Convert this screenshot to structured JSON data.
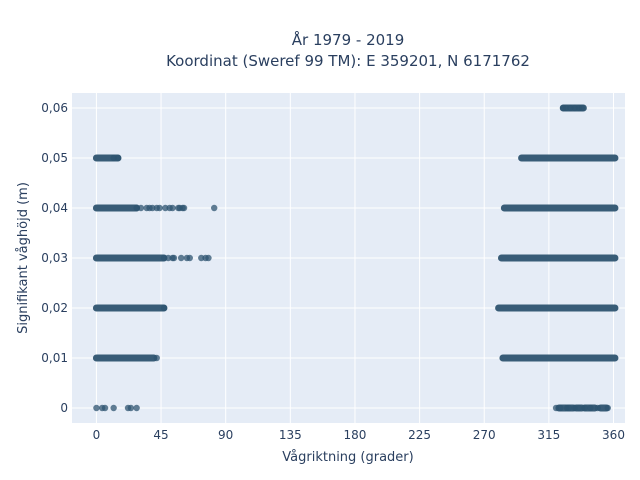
{
  "chart_data": {
    "type": "scatter",
    "title_lines": [
      "År 1979 - 2019",
      "Koordinat (Sweref 99 TM): E 359201, N 6171762"
    ],
    "xlabel": "Vågriktning (grader)",
    "ylabel": "Signifikant våghöjd (m)",
    "xlim": [
      -17,
      368
    ],
    "ylim": [
      -0.003,
      0.063
    ],
    "x_ticks": [
      0,
      45,
      90,
      135,
      180,
      225,
      270,
      315,
      360
    ],
    "x_tick_labels": [
      "0",
      "45",
      "90",
      "135",
      "180",
      "225",
      "270",
      "315",
      "360"
    ],
    "y_ticks": [
      0,
      0.01,
      0.02,
      0.03,
      0.04,
      0.05,
      0.06
    ],
    "y_tick_labels": [
      "0",
      "0,01",
      "0,02",
      "0,03",
      "0,04",
      "0,05",
      "0,06"
    ],
    "grid": true,
    "marker_color": "#2e5470",
    "plot_bgcolor": "#e5ecf6",
    "series": [
      {
        "bands": [
          {
            "y": 0,
            "x_ranges": [
              [
                322,
                327
              ],
              [
                328,
                332
              ],
              [
                334,
                338
              ],
              [
                340,
                347
              ],
              [
                351,
                355
              ]
            ],
            "x_points": [
              0,
              4,
              6,
              12,
              22,
              24,
              28,
              320,
              323,
              329,
              333,
              336,
              340,
              344,
              349,
              356
            ]
          },
          {
            "y": 0.01,
            "x_ranges": [
              [
                0,
                40
              ],
              [
                283,
                361
              ]
            ],
            "x_points": [
              42
            ]
          },
          {
            "y": 0.02,
            "x_ranges": [
              [
                0,
                47
              ],
              [
                280,
                361
              ]
            ],
            "x_points": [
              47
            ]
          },
          {
            "y": 0.03,
            "x_ranges": [
              [
                0,
                47
              ],
              [
                282,
                361
              ]
            ],
            "x_points": [
              47,
              50,
              53,
              54,
              59,
              63,
              65,
              73,
              76,
              78
            ]
          },
          {
            "y": 0.04,
            "x_ranges": [
              [
                0,
                28
              ],
              [
                284,
                361
              ]
            ],
            "x_points": [
              28,
              31,
              35,
              37,
              39,
              42,
              44,
              48,
              51,
              53,
              57,
              58,
              60,
              61,
              82
            ]
          },
          {
            "y": 0.05,
            "x_ranges": [
              [
                0,
                15
              ],
              [
                296,
                361
              ]
            ],
            "x_points": [
              12,
              15
            ]
          },
          {
            "y": 0.06,
            "x_ranges": [
              [
                325,
                339
              ]
            ],
            "x_points": [
              325,
              327,
              330,
              333,
              336,
              338
            ]
          }
        ]
      }
    ]
  }
}
